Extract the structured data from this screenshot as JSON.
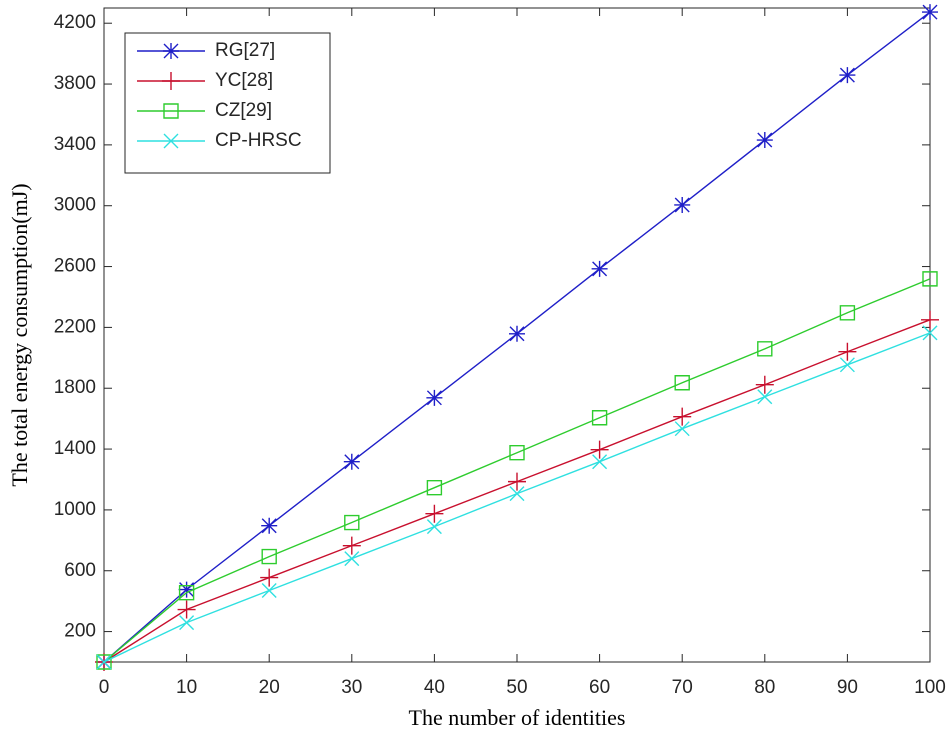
{
  "chart_data": {
    "type": "line",
    "x_label": "The number of identities",
    "y_label": "The total energy consumption(mJ)",
    "x": [
      0,
      10,
      20,
      30,
      40,
      50,
      60,
      70,
      80,
      90,
      100
    ],
    "series": [
      {
        "name": "RG[27]",
        "color": "#1f1fc8",
        "marker": "asterisk",
        "values": [
          0,
          476,
          896,
          1317,
          1737,
          2158,
          2585,
          3005,
          3432,
          3859,
          4273
        ]
      },
      {
        "name": "YC[28]",
        "color": "#c8102e",
        "marker": "plus",
        "values": [
          0,
          345,
          555,
          765,
          975,
          1186,
          1396,
          1613,
          1823,
          2040,
          2250
        ]
      },
      {
        "name": "CZ[29]",
        "color": "#2ecc2e",
        "marker": "square",
        "values": [
          0,
          456,
          693,
          917,
          1146,
          1376,
          1606,
          1836,
          2059,
          2296,
          2519
        ]
      },
      {
        "name": "CP-HRSC",
        "color": "#2fe0e0",
        "marker": "x",
        "values": [
          0,
          259,
          470,
          680,
          890,
          1107,
          1317,
          1534,
          1744,
          1954,
          2164
        ]
      }
    ],
    "xlim": [
      0,
      100
    ],
    "xticks": [
      0,
      10,
      20,
      30,
      40,
      50,
      60,
      70,
      80,
      90,
      100
    ],
    "ylim": [
      0,
      4300
    ],
    "yticks": [
      200,
      600,
      1000,
      1400,
      1800,
      2200,
      2600,
      3000,
      3400,
      3800,
      4200
    ],
    "grid": false,
    "legend": "upper left"
  }
}
